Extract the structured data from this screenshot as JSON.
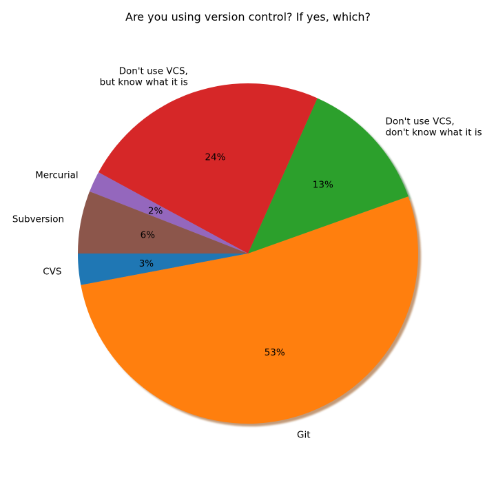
{
  "chart_data": {
    "type": "pie",
    "title": "Are you using version control? If yes, which?",
    "start_angle_deg": 180,
    "direction": "counterclockwise",
    "shadow": true,
    "slices": [
      {
        "label": "CVS",
        "value": 3,
        "pct_label": "3%",
        "color": "#1f77b4"
      },
      {
        "label": "Git",
        "value": 53,
        "pct_label": "53%",
        "color": "#ff7f0e"
      },
      {
        "label": "Don't use VCS,\ndon't know what it is",
        "value": 13,
        "pct_label": "13%",
        "color": "#2ca02c"
      },
      {
        "label": "Don't use VCS,\nbut know what it is",
        "value": 24,
        "pct_label": "24%",
        "color": "#d62728"
      },
      {
        "label": "Mercurial",
        "value": 2,
        "pct_label": "2%",
        "color": "#9467bd"
      },
      {
        "label": "Subversion",
        "value": 6,
        "pct_label": "6%",
        "color": "#8c564b"
      }
    ]
  }
}
